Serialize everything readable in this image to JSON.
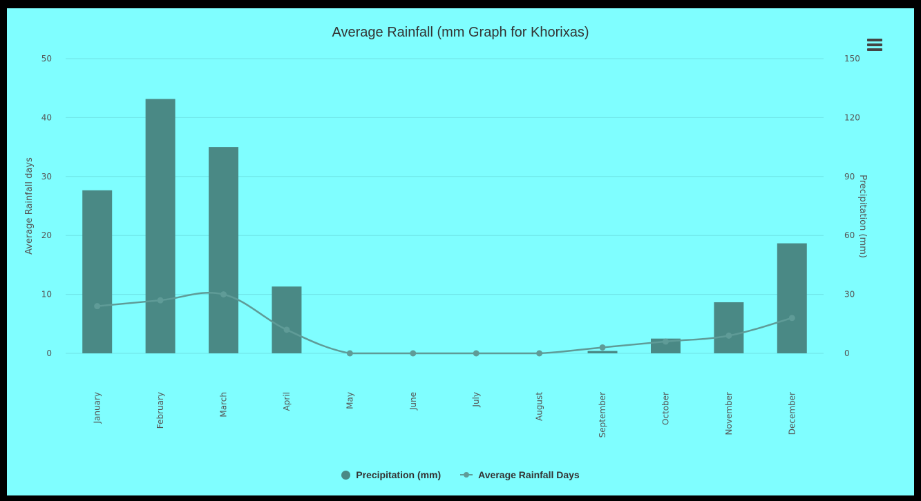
{
  "menu_icon": "hamburger-menu-icon",
  "colors": {
    "background": "#7ffeff",
    "bar": "#4a8985",
    "line": "#5f9b97",
    "grid": "#6fe3e6",
    "frame": "#000000"
  },
  "legend": {
    "precipitation": "Precipitation (mm)",
    "rain_days": "Average Rainfall Days"
  },
  "chart_data": {
    "type": "bar",
    "title": "Average Rainfall (mm Graph for Khorixas)",
    "categories": [
      "January",
      "February",
      "March",
      "April",
      "May",
      "June",
      "July",
      "August",
      "September",
      "October",
      "November",
      "December"
    ],
    "ylabel_left": "Average Rainfall days",
    "ylabel_right": "Precipitation (mm)",
    "ylim_left": [
      0,
      50
    ],
    "yticks_left": [
      0,
      10,
      20,
      30,
      40,
      50
    ],
    "ylim_right": [
      0,
      150
    ],
    "yticks_right": [
      0,
      30,
      60,
      90,
      120,
      150
    ],
    "grid": true,
    "legend_position": "bottom-center",
    "series": [
      {
        "name": "Precipitation (mm)",
        "type": "bar",
        "axis": "right",
        "values": [
          83,
          129.5,
          105,
          34,
          0,
          0,
          0,
          0,
          1.2,
          7.5,
          26,
          56
        ]
      },
      {
        "name": "Average Rainfall Days",
        "type": "line",
        "axis": "left",
        "values": [
          8,
          9,
          10,
          4,
          0,
          0,
          0,
          0,
          1,
          2,
          3,
          6
        ]
      }
    ]
  }
}
